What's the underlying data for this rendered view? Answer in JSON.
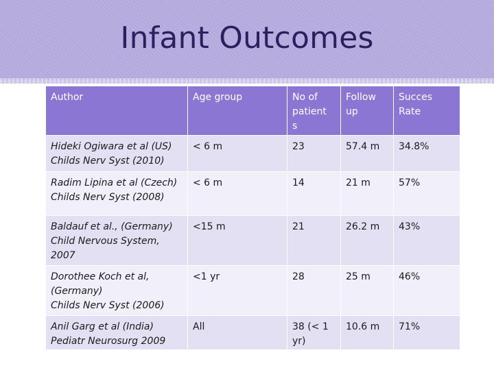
{
  "slide": {
    "title": "Infant Outcomes"
  },
  "table": {
    "headers": {
      "author": "Author",
      "age_group": "Age group",
      "no_of_patients": [
        "No of",
        "patient",
        "s"
      ],
      "follow_up": [
        "Follow",
        "up"
      ],
      "success_rate": [
        "Succes",
        "Rate"
      ]
    },
    "rows": [
      {
        "author_lines": [
          "Hideki Ogiwara et al (US)",
          "Childs Nerv Syst (2010)"
        ],
        "age_group": "< 6 m",
        "no_of_patients": "23",
        "follow_up": "57.4 m",
        "success_rate": "34.8%"
      },
      {
        "author_lines": [
          "Radim Lipina et al (Czech)",
          "Childs Nerv Syst (2008)"
        ],
        "age_group": "< 6 m",
        "no_of_patients": "14",
        "follow_up": "21 m",
        "success_rate": "57%"
      },
      {
        "author_lines": [
          "Baldauf et al., (Germany)",
          "Child Nervous System,",
          "2007"
        ],
        "age_group": "<15 m",
        "no_of_patients": "21",
        "follow_up": "26.2 m",
        "success_rate": "43%"
      },
      {
        "author_lines": [
          "Dorothee Koch et al,",
          "(Germany)",
          "Childs Nerv Syst (2006)"
        ],
        "age_group": "<1 yr",
        "no_of_patients": "28",
        "follow_up": "25 m",
        "success_rate": "46%"
      },
      {
        "author_lines": [
          "Anil Garg et al (India)",
          "Pediatr Neurosurg 2009"
        ],
        "age_group": "All",
        "no_of_patients_lines": [
          "38 (< 1",
          "yr)"
        ],
        "follow_up": "10.6 m",
        "success_rate": "71%"
      }
    ]
  }
}
